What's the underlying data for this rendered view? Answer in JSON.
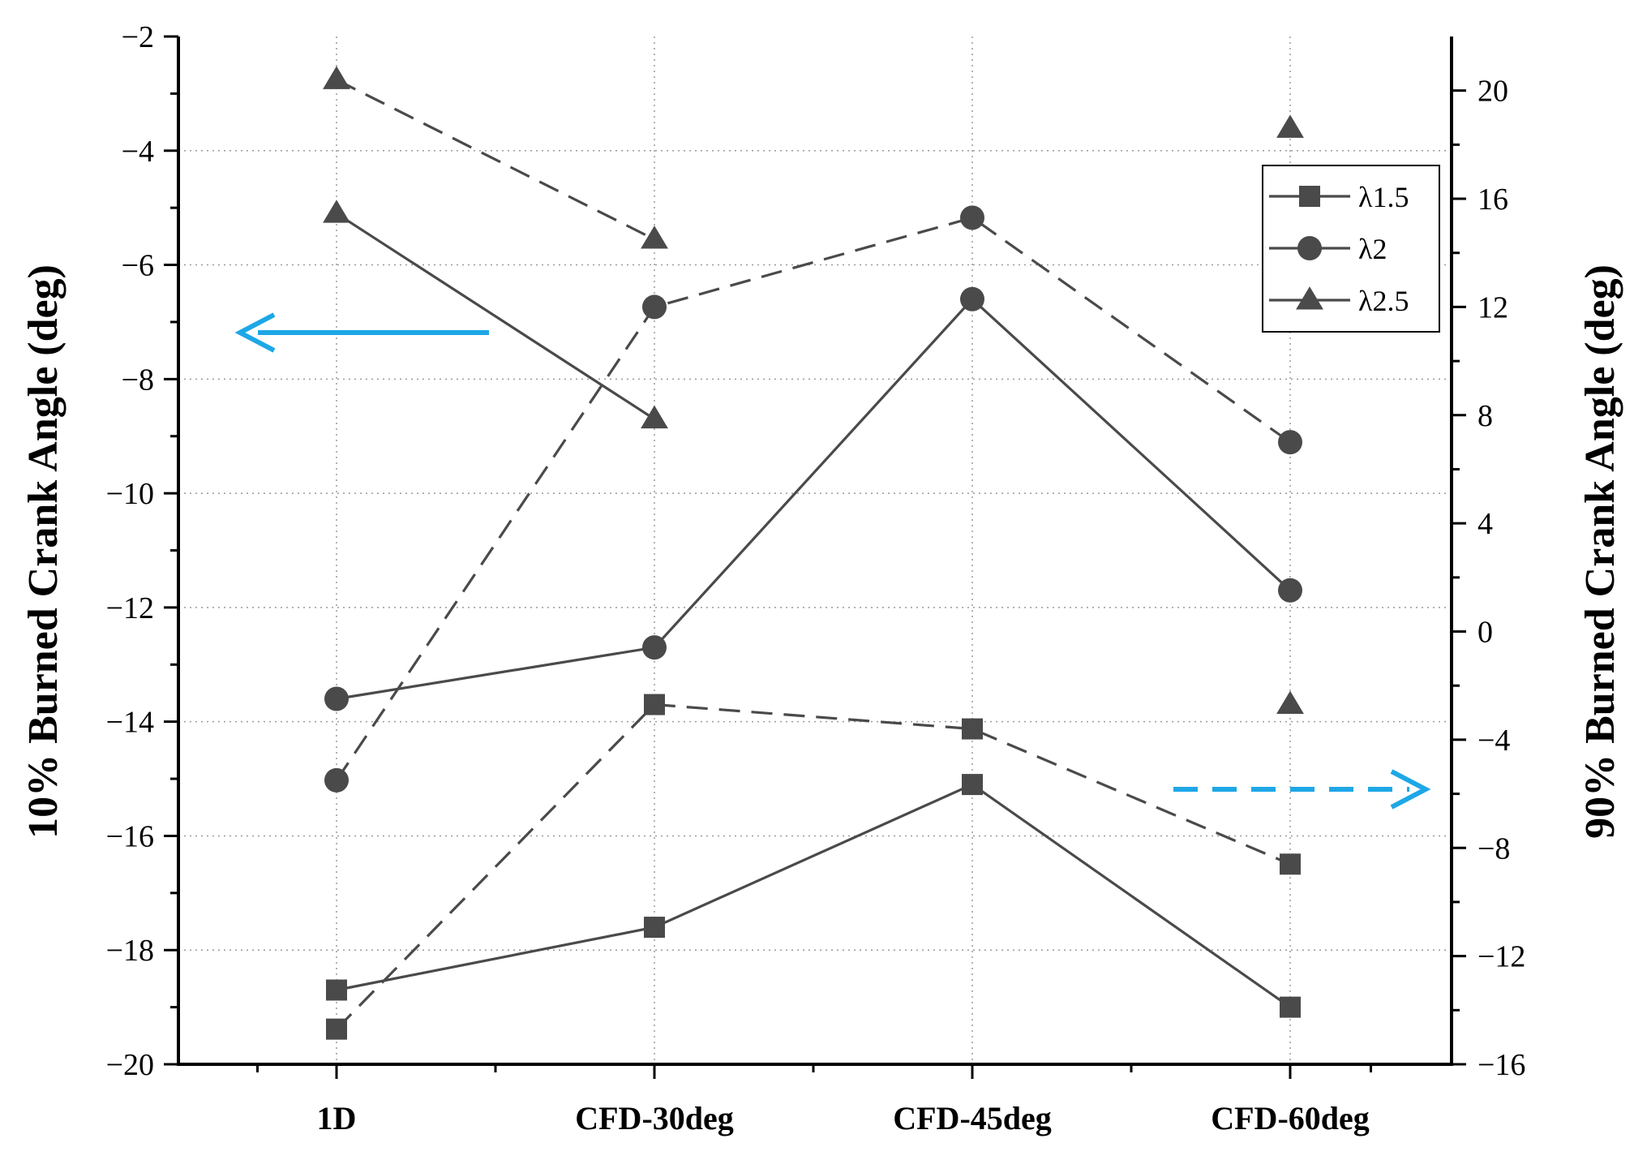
{
  "chart_data": {
    "type": "line",
    "title": "",
    "categories": [
      "1D",
      "CFD-30deg",
      "CFD-45deg",
      "CFD-60deg"
    ],
    "xlabel": "",
    "ylabel": "10% Burned Crank Angle (deg)",
    "ylabel_right": "90% Burned Crank Angle (deg)",
    "ylim": [
      -20,
      -2
    ],
    "ylim_right": [
      -16,
      22
    ],
    "yticks": [
      "−2",
      "−4",
      "−6",
      "−8",
      "−10",
      "−12",
      "−14",
      "−16",
      "−18",
      "−20"
    ],
    "yticks_right": [
      "20",
      "16",
      "12",
      "8",
      "4",
      "0",
      "−4",
      "−8",
      "−12",
      "−16"
    ],
    "grid": true,
    "legend_position": "top-right",
    "legend": [
      "λ1.5",
      "λ2",
      "λ2.5"
    ],
    "series": [
      {
        "name": "λ1.5",
        "marker": "square",
        "axis": "left",
        "line": "solid",
        "values": [
          -18.7,
          -17.6,
          -15.1,
          -19.0
        ]
      },
      {
        "name": "λ2",
        "marker": "circle",
        "axis": "left",
        "line": "solid",
        "values": [
          -13.6,
          -12.7,
          -6.6,
          -11.7
        ]
      },
      {
        "name": "λ2.5",
        "marker": "triangle",
        "axis": "left",
        "line": "solid",
        "values": [
          -5.1,
          -8.7,
          null,
          null
        ]
      },
      {
        "name": "λ1.5",
        "marker": "square",
        "axis": "right",
        "line": "dashed",
        "values": [
          -14.7,
          -2.7,
          -3.6,
          -8.6
        ]
      },
      {
        "name": "λ2",
        "marker": "circle",
        "axis": "right",
        "line": "dashed",
        "values": [
          -5.5,
          12.0,
          15.3,
          7.0
        ]
      },
      {
        "name": "λ2.5",
        "marker": "triangle",
        "axis": "right",
        "line": "dashed",
        "values": [
          20.4,
          14.5,
          null,
          null
        ]
      },
      {
        "name": "λ2.5",
        "marker": "triangle",
        "axis": "right",
        "line": "none",
        "values": [
          null,
          null,
          null,
          18.6
        ]
      },
      {
        "name": "λ2.5",
        "marker": "triangle",
        "axis": "left",
        "line": "none",
        "values": [
          null,
          null,
          null,
          -13.7
        ]
      }
    ],
    "annotations": [
      {
        "type": "arrow",
        "direction": "left",
        "style": "solid",
        "color": "#1EA7E6",
        "meaning": "left axis"
      },
      {
        "type": "arrow",
        "direction": "right",
        "style": "dashed",
        "color": "#1EA7E6",
        "meaning": "right axis"
      }
    ],
    "series_color": "#4a4a4a"
  }
}
